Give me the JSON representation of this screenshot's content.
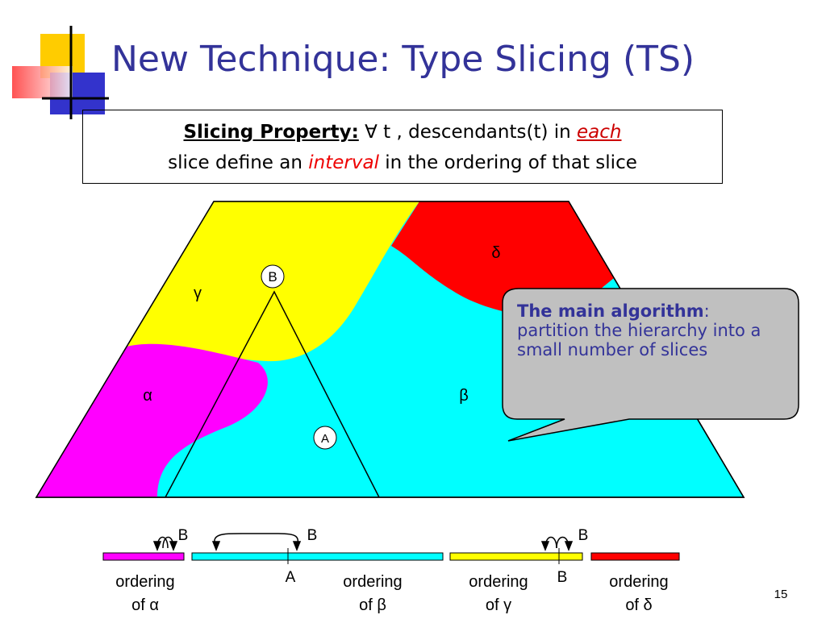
{
  "title": "New Technique: Type Slicing (TS)",
  "property": {
    "label": "Slicing Property:",
    "line1": "∀ t , descendants(t) in ",
    "each": "each",
    "line2a": "slice define an ",
    "interval": "interval",
    "line2b": " in the ordering of that slice"
  },
  "regions": {
    "gamma": "γ",
    "delta": "δ",
    "alpha": "α",
    "beta": "β"
  },
  "nodes": {
    "b": "B",
    "a": "A"
  },
  "callout": {
    "bold": "The main algorithm",
    "colon": ":",
    "text": "partition the hierarchy into a small number of slices"
  },
  "orderings": {
    "markers": [
      "B",
      "B",
      "B",
      "A",
      "B"
    ],
    "labels": [
      {
        "line1": "ordering",
        "line2": "of α"
      },
      {
        "line1": "ordering",
        "line2": "of β"
      },
      {
        "line1": "ordering",
        "line2": "of γ"
      },
      {
        "line1": "ordering",
        "line2": "of δ"
      }
    ]
  },
  "page_number": "15"
}
